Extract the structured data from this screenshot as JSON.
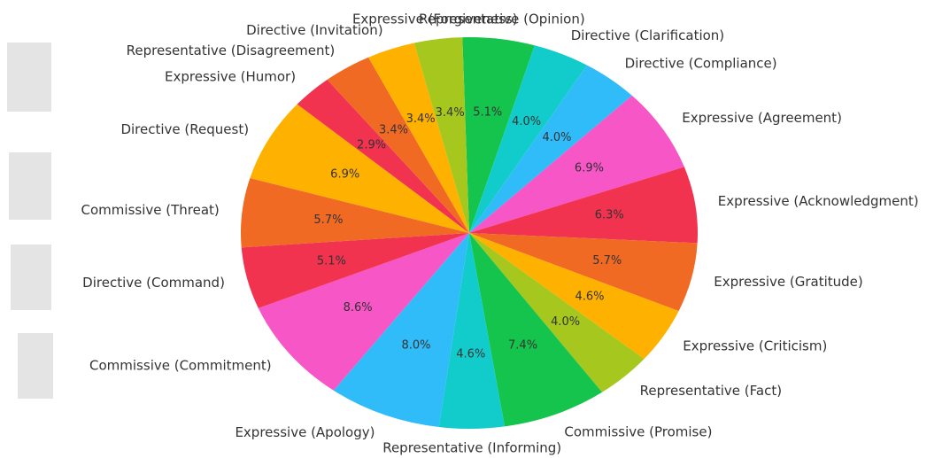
{
  "chart_data": {
    "type": "pie",
    "categories": [
      "Representative (Opinion)",
      "Directive (Clarification)",
      "Directive (Compliance)",
      "Expressive (Agreement)",
      "Expressive (Acknowledgment)",
      "Expressive (Gratitude)",
      "Expressive (Criticism)",
      "Representative (Fact)",
      "Commissive (Promise)",
      "Representative (Informing)",
      "Expressive (Apology)",
      "Commissive (Commitment)",
      "Directive (Command)",
      "Commissive (Threat)",
      "Directive (Request)",
      "Expressive (Humor)",
      "Representative (Disagreement)",
      "Directive (Invitation)",
      "Expressive (Forgiveness)"
    ],
    "values": [
      5.1,
      4.0,
      4.0,
      6.9,
      6.3,
      5.7,
      4.6,
      4.0,
      7.4,
      4.6,
      8.0,
      8.6,
      5.1,
      5.7,
      6.9,
      2.9,
      3.4,
      3.4,
      3.4
    ],
    "value_labels": [
      "5.1%",
      "4.0%",
      "4.0%",
      "6.9%",
      "6.3%",
      "5.7%",
      "4.6%",
      "4.0%",
      "7.4%",
      "4.6%",
      "8.0%",
      "8.6%",
      "5.1%",
      "5.7%",
      "6.9%",
      "2.9%",
      "3.4%",
      "3.4%",
      "3.4%"
    ],
    "colors": [
      "#14c44c",
      "#12cccc",
      "#30bcf8",
      "#f656c6",
      "#f2334f",
      "#f06a24",
      "#ffb100",
      "#a6c81e",
      "#14c44c",
      "#12cccc",
      "#30bcf8",
      "#f656c6",
      "#f2334f",
      "#f06a24",
      "#ffb100",
      "#f2334f",
      "#f06a24",
      "#ffb100",
      "#a6c81e"
    ]
  }
}
